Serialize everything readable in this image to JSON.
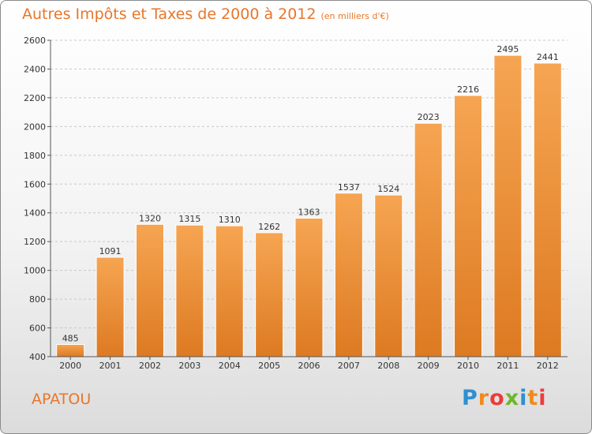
{
  "title": "Autres Impôts et Taxes de 2000 à 2012",
  "subtitle": "(en milliers d'€)",
  "commune": "APATOU",
  "brand": {
    "letters": [
      "P",
      "r",
      "o",
      "x",
      "i",
      "t",
      "i"
    ],
    "colors": [
      "#2f8fd0",
      "#f08a1c",
      "#ef3a3a",
      "#6bb82a",
      "#2f8fd0",
      "#f08a1c",
      "#ef3a3a"
    ]
  },
  "colors": {
    "accent": "#e8762a",
    "bar_top": "#f6a552",
    "bar_bottom": "#dd7a22"
  },
  "chart_data": {
    "type": "bar",
    "categories": [
      "2000",
      "2001",
      "2002",
      "2003",
      "2004",
      "2005",
      "2006",
      "2007",
      "2008",
      "2009",
      "2010",
      "2011",
      "2012"
    ],
    "values": [
      485,
      1091,
      1320,
      1315,
      1310,
      1262,
      1363,
      1537,
      1524,
      2023,
      2216,
      2495,
      2441
    ],
    "data_labels": [
      "485",
      "1091",
      "1320",
      "1315",
      "1310",
      "1262",
      "1363",
      "1537",
      "1524",
      "2023",
      "2216",
      "2495",
      "2441"
    ],
    "yticks": [
      400,
      600,
      800,
      1000,
      1200,
      1400,
      1600,
      1800,
      2000,
      2200,
      2400,
      2600
    ],
    "ylim": [
      400,
      2600
    ],
    "grid": true
  }
}
